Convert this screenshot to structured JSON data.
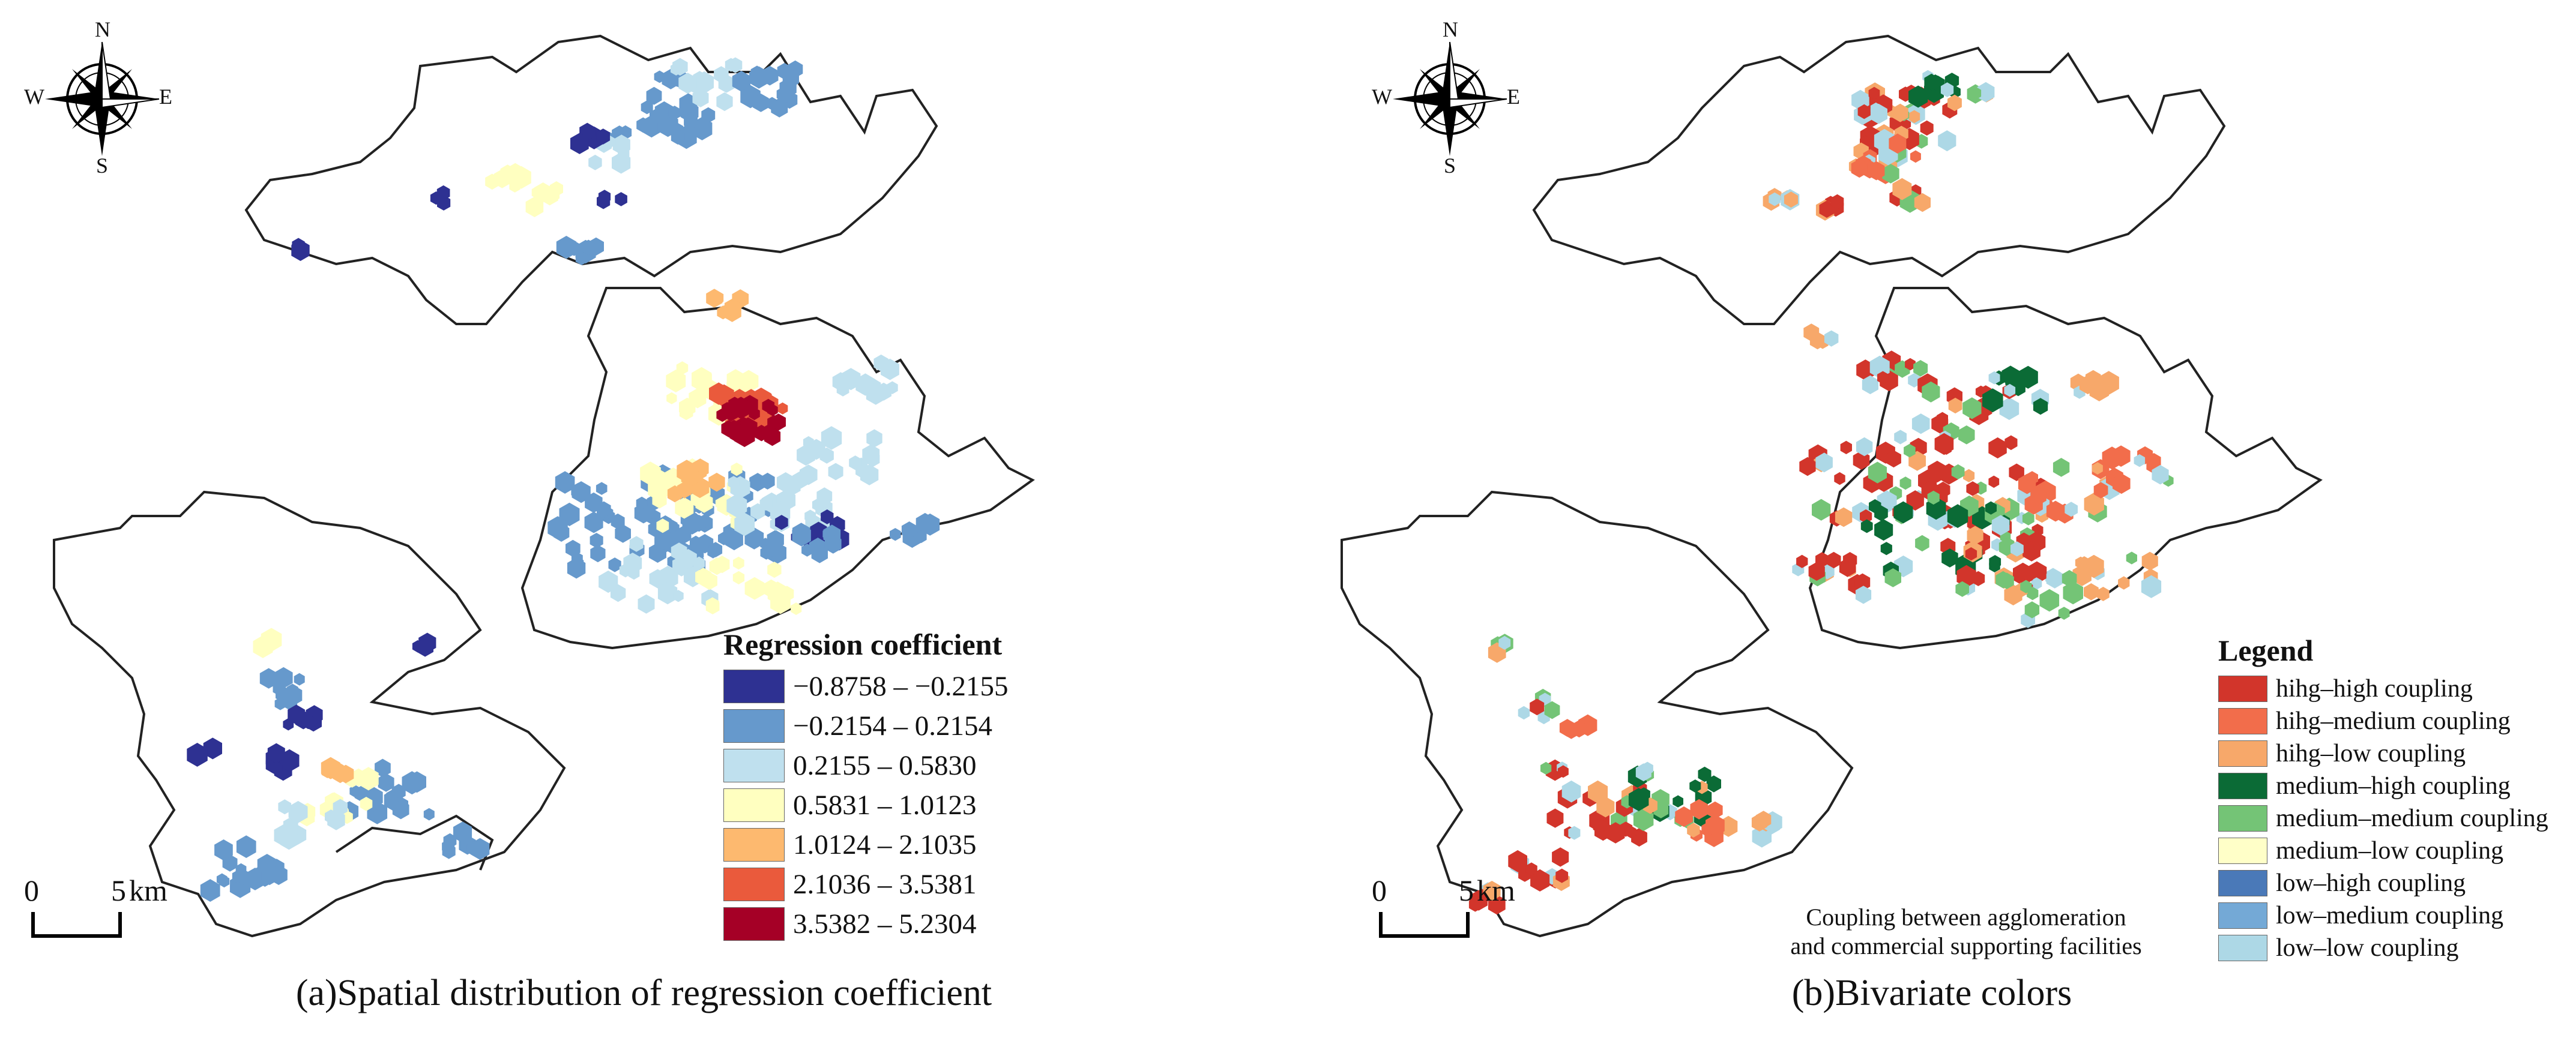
{
  "panel_a": {
    "caption": "(a)Spatial distribution of regression coefficient",
    "legend": {
      "title": "Regression coefficient",
      "items": [
        {
          "label": "−0.8758 – −0.2155",
          "color": "#2e3192"
        },
        {
          "label": "−0.2154 – 0.2154",
          "color": "#6699cc"
        },
        {
          "label": "0.2155 – 0.5830",
          "color": "#bfe0ee"
        },
        {
          "label": "0.5831 – 1.0123",
          "color": "#ffffc0"
        },
        {
          "label": "1.0124 – 2.1035",
          "color": "#fdb96f"
        },
        {
          "label": "2.1036 – 3.5381",
          "color": "#ea5a3c"
        },
        {
          "label": "3.5382 – 5.2304",
          "color": "#a50026"
        }
      ]
    },
    "scale": {
      "zero": "0",
      "end": "5",
      "unit": "km"
    },
    "compass": {
      "n": "N",
      "s": "S",
      "e": "E",
      "w": "W"
    }
  },
  "panel_b": {
    "caption": "(b)Bivariate colors",
    "legend": {
      "title": "Legend",
      "items": [
        {
          "label": "hihg–high coupling",
          "color": "#d2352b"
        },
        {
          "label": "hihg–medium coupling",
          "color": "#f26d4b"
        },
        {
          "label": "hihg–low coupling",
          "color": "#f7a86a"
        },
        {
          "label": "medium–high coupling",
          "color": "#0b6b36"
        },
        {
          "label": "medium–medium coupling",
          "color": "#74c476"
        },
        {
          "label": "medium–low coupling",
          "color": "#ffffc8"
        },
        {
          "label": "low–high coupling",
          "color": "#4a79b8"
        },
        {
          "label": "low–medium coupling",
          "color": "#74a9d6"
        },
        {
          "label": "low–low coupling",
          "color": "#add8e6"
        }
      ]
    },
    "note": [
      "Coupling between agglomeration",
      "and commercial supporting facilities"
    ],
    "scale": {
      "zero": "0",
      "end": "5",
      "unit": "km"
    },
    "compass": {
      "n": "N",
      "s": "S",
      "e": "E",
      "w": "W"
    }
  }
}
